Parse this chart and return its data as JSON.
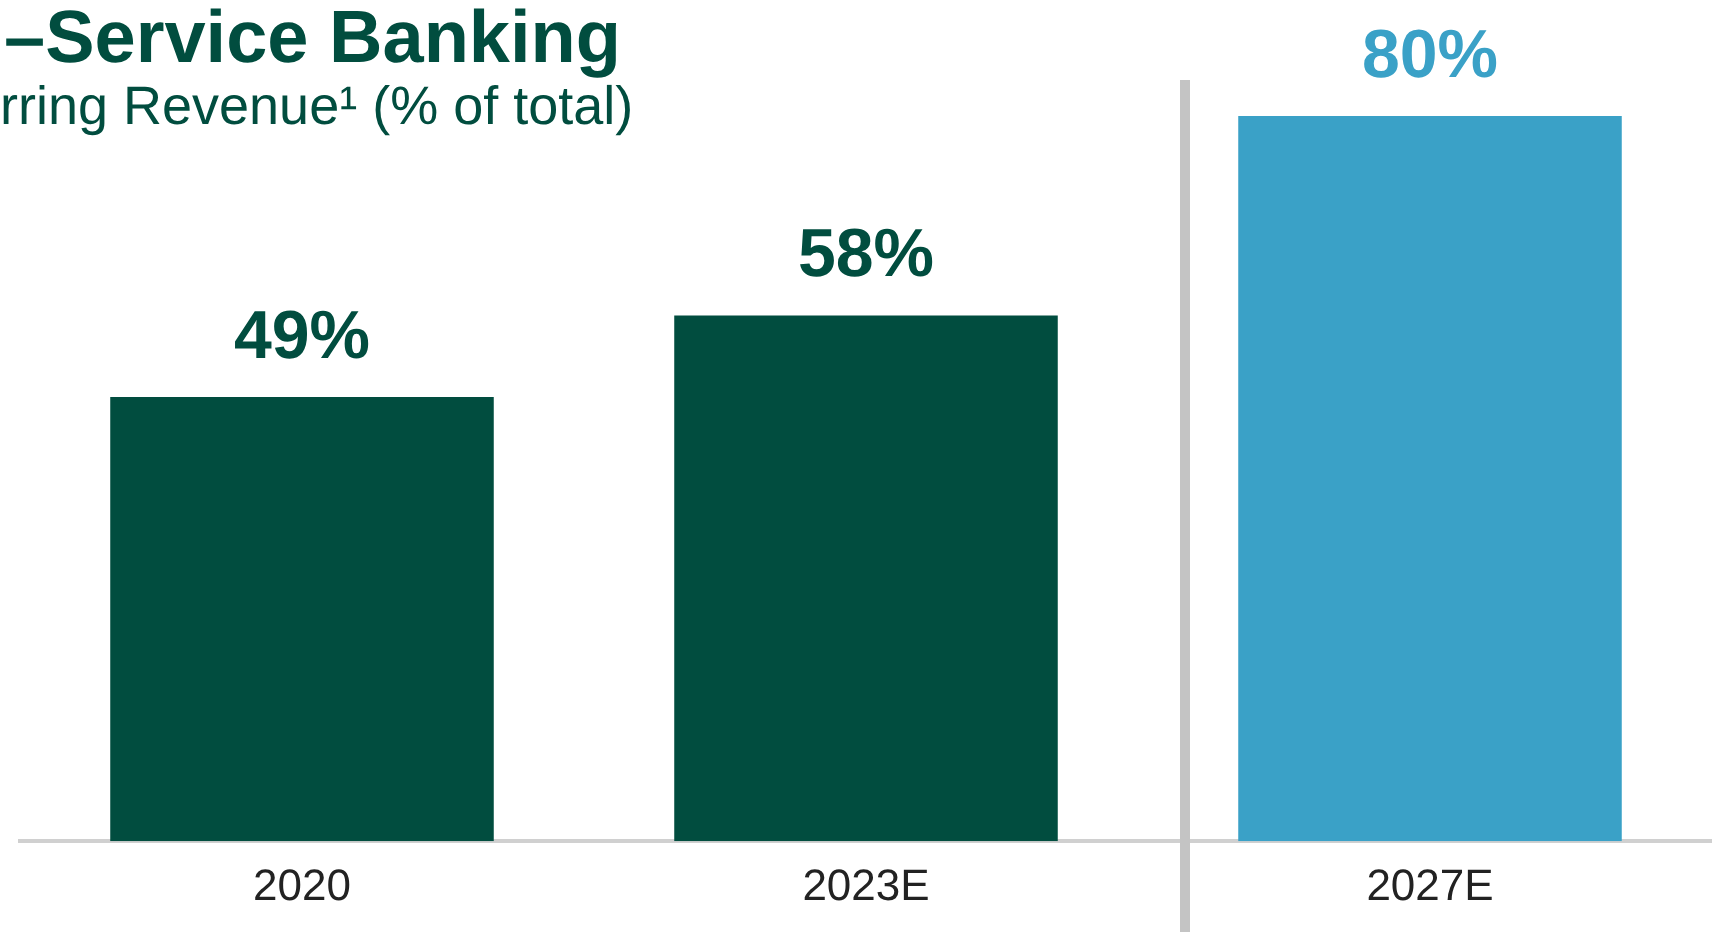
{
  "chart_data": {
    "type": "bar",
    "title": "–Service Banking",
    "subtitle": "rring Revenue¹ (% of total)",
    "categories": [
      "2020",
      "2023E",
      "2027E"
    ],
    "values": [
      49,
      58,
      80
    ],
    "colors": [
      "#014d3f",
      "#014d3f",
      "#3aa1c7"
    ],
    "value_labels": [
      "49%",
      "58%",
      "80%"
    ],
    "grid": false,
    "legend": false
  }
}
